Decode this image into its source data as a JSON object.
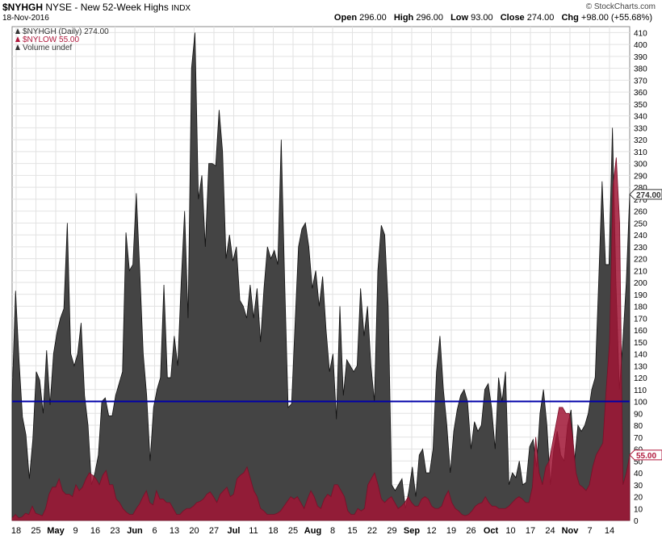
{
  "header": {
    "symbol": "$NYHGH",
    "description": "NYSE - New 52-Week Highs",
    "exchange": "INDX",
    "date": "18-Nov-2016",
    "brand": "© StockCharts.com",
    "open_label": "Open",
    "open": "296.00",
    "high_label": "High",
    "high": "296.00",
    "low_label": "Low",
    "low": "93.00",
    "close_label": "Close",
    "close": "274.00",
    "chg_label": "Chg",
    "chg": "+98.00 (+55.68%)"
  },
  "legend": [
    {
      "label": "$NYHGH (Daily) 274.00",
      "color": "#333333"
    },
    {
      "label": "$NYLOW 55.00",
      "color": "#b0183c"
    },
    {
      "label": "Volume undef",
      "color": "#333333"
    }
  ],
  "chart_data": {
    "type": "area",
    "ylim": [
      0,
      415
    ],
    "y_ticks": [
      0,
      10,
      20,
      30,
      40,
      50,
      60,
      70,
      80,
      90,
      100,
      110,
      120,
      130,
      140,
      150,
      160,
      170,
      180,
      190,
      200,
      210,
      220,
      230,
      240,
      250,
      260,
      270,
      280,
      290,
      300,
      310,
      320,
      330,
      340,
      350,
      360,
      370,
      380,
      390,
      400,
      410
    ],
    "x_tick_labels": [
      "18",
      "25",
      "May",
      "9",
      "16",
      "23",
      "Jun",
      "6",
      "13",
      "20",
      "27",
      "Jul",
      "11",
      "18",
      "25",
      "Aug",
      "8",
      "15",
      "22",
      "29",
      "Sep",
      "12",
      "19",
      "26",
      "Oct",
      "10",
      "17",
      "24",
      "Nov",
      "7",
      "14"
    ],
    "x_tick_bold": [
      "May",
      "Jun",
      "Jul",
      "Aug",
      "Sep",
      "Oct",
      "Nov"
    ],
    "reference_line": {
      "value": 100,
      "color": "#0000aa"
    },
    "last_value_labels": [
      {
        "value": 274,
        "text": "274.00",
        "color": "#333333"
      },
      {
        "value": 55,
        "text": "55.00",
        "color": "#b0183c"
      }
    ],
    "series": [
      {
        "name": "$NYHGH",
        "color": "#444444",
        "values": [
          105,
          193,
          135,
          87,
          72,
          35,
          68,
          125,
          118,
          90,
          143,
          97,
          140,
          158,
          170,
          178,
          250,
          140,
          130,
          140,
          166,
          105,
          80,
          30,
          40,
          55,
          100,
          103,
          88,
          88,
          105,
          115,
          125,
          242,
          210,
          215,
          275,
          210,
          140,
          105,
          50,
          95,
          110,
          120,
          198,
          120,
          120,
          155,
          130,
          200,
          260,
          170,
          380,
          410,
          270,
          290,
          230,
          300,
          300,
          298,
          345,
          310,
          220,
          240,
          218,
          230,
          185,
          180,
          170,
          198,
          170,
          195,
          150,
          195,
          230,
          220,
          227,
          215,
          320,
          200,
          95,
          98,
          165,
          230,
          245,
          250,
          230,
          195,
          210,
          180,
          205,
          160,
          125,
          140,
          85,
          180,
          105,
          135,
          130,
          125,
          130,
          195,
          155,
          180,
          130,
          100,
          210,
          248,
          240,
          180,
          30,
          25,
          30,
          35,
          10,
          25,
          45,
          20,
          55,
          60,
          40,
          40,
          60,
          125,
          155,
          110,
          80,
          40,
          75,
          93,
          105,
          110,
          100,
          60,
          83,
          75,
          80,
          110,
          115,
          94,
          60,
          120,
          100,
          125,
          30,
          40,
          36,
          50,
          30,
          32,
          62,
          68,
          45,
          90,
          110,
          80,
          30,
          60,
          75,
          55,
          50,
          80,
          93,
          50,
          80,
          75,
          80,
          90,
          110,
          120,
          200,
          285,
          215,
          215,
          330,
          200,
          110,
          150,
          200,
          274
        ]
      },
      {
        "name": "$NYLOW",
        "color": "#a01535",
        "values": [
          2,
          5,
          2,
          3,
          6,
          5,
          12,
          6,
          5,
          4,
          10,
          22,
          28,
          28,
          35,
          25,
          22,
          22,
          20,
          30,
          25,
          28,
          35,
          40,
          38,
          35,
          30,
          38,
          42,
          30,
          30,
          18,
          15,
          10,
          7,
          5,
          5,
          10,
          14,
          20,
          25,
          15,
          13,
          25,
          18,
          18,
          15,
          15,
          10,
          5,
          5,
          8,
          10,
          10,
          12,
          15,
          16,
          18,
          22,
          24,
          20,
          15,
          22,
          25,
          28,
          20,
          22,
          35,
          38,
          40,
          45,
          35,
          25,
          20,
          10,
          8,
          5,
          5,
          5,
          6,
          8,
          12,
          16,
          20,
          18,
          20,
          15,
          10,
          18,
          25,
          20,
          12,
          10,
          18,
          22,
          20,
          30,
          30,
          25,
          20,
          8,
          5,
          5,
          10,
          8,
          10,
          30,
          35,
          40,
          30,
          18,
          15,
          18,
          20,
          15,
          10,
          12,
          15,
          20,
          15,
          12,
          12,
          18,
          20,
          18,
          12,
          10,
          10,
          12,
          20,
          25,
          15,
          10,
          8,
          5,
          4,
          5,
          8,
          12,
          14,
          15,
          20,
          15,
          12,
          12,
          10,
          10,
          10,
          12,
          15,
          18,
          20,
          18,
          15,
          15,
          28,
          70,
          40,
          30,
          45,
          50,
          65,
          80,
          95,
          95,
          90,
          90,
          70,
          40,
          30,
          28,
          25,
          30,
          45,
          55,
          60,
          65,
          110,
          150,
          280,
          305,
          250,
          30,
          40,
          55
        ]
      }
    ],
    "hidden_series_note": ""
  }
}
